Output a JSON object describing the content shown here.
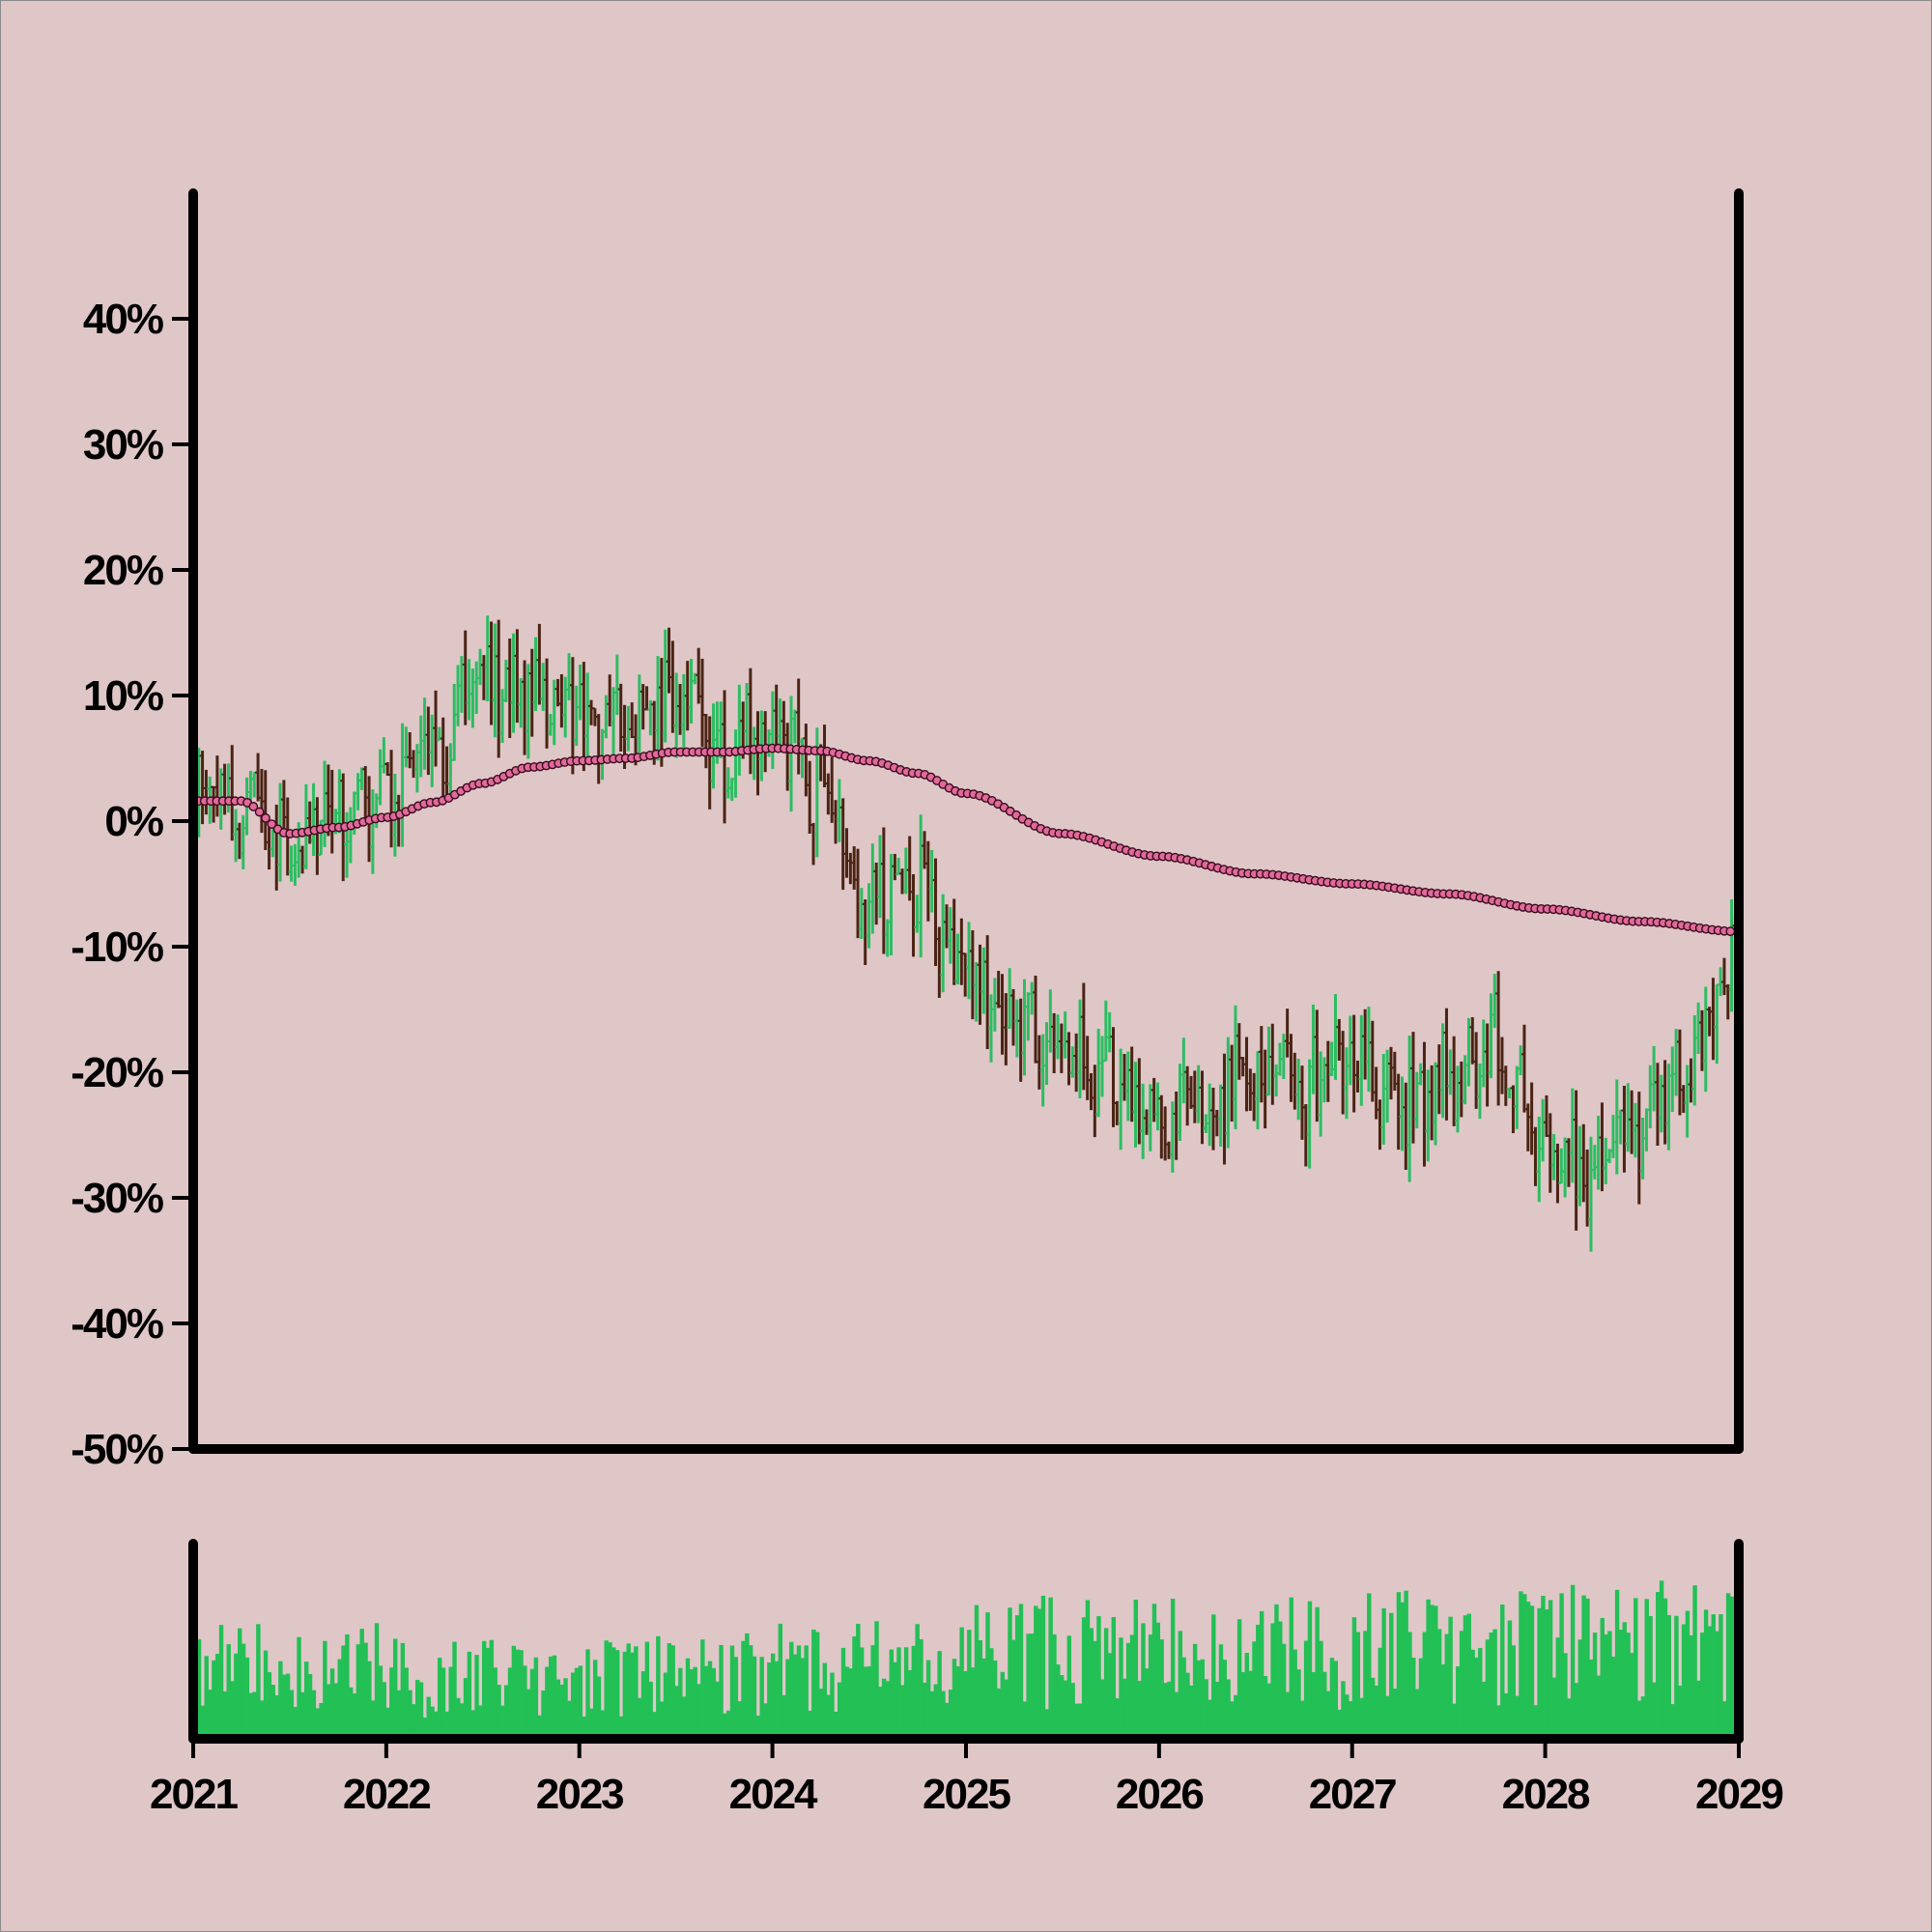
{
  "colors": {
    "background": "#dfc7c8",
    "up": "#2dbd62",
    "down": "#4b2414",
    "moving_average": "#e06a9a",
    "volume": "#22c055",
    "axis": "#000000"
  },
  "chart_data": {
    "type": "ohlc",
    "title": "",
    "xlabel": "",
    "ylabel": "",
    "y_unit": "%",
    "ylim": [
      -50,
      50
    ],
    "xlim": [
      "2021-01-01",
      "2029-01-01"
    ],
    "y_ticks": [
      {
        "value": 40,
        "label": "40%"
      },
      {
        "value": 30,
        "label": "30%"
      },
      {
        "value": 20,
        "label": "20%"
      },
      {
        "value": 10,
        "label": "10%"
      },
      {
        "value": 0,
        "label": "0%"
      },
      {
        "value": -10,
        "label": "-10%"
      },
      {
        "value": -20,
        "label": "-20%"
      },
      {
        "value": -30,
        "label": "-30%"
      },
      {
        "value": -40,
        "label": "-40%"
      },
      {
        "value": -50,
        "label": "-50%"
      }
    ],
    "x_ticks": [
      {
        "date": "2021-01-01",
        "label": "2021"
      },
      {
        "date": "2022-01-01",
        "label": "2022"
      },
      {
        "date": "2023-01-01",
        "label": "2023"
      },
      {
        "date": "2024-01-01",
        "label": "2024"
      },
      {
        "date": "2025-01-01",
        "label": "2025"
      },
      {
        "date": "2026-01-01",
        "label": "2026"
      },
      {
        "date": "2027-01-01",
        "label": "2027"
      },
      {
        "date": "2028-01-01",
        "label": "2028"
      },
      {
        "date": "2029-01-01",
        "label": "2029"
      }
    ],
    "price_anchors": {
      "dates": [
        "2021-01-01",
        "2021-04-01",
        "2021-07-01",
        "2021-10-01",
        "2022-01-01",
        "2022-04-01",
        "2022-07-01",
        "2022-10-01",
        "2023-01-01",
        "2023-04-01",
        "2023-07-01",
        "2023-10-01",
        "2024-01-01",
        "2024-04-01",
        "2024-07-01",
        "2024-10-01",
        "2025-01-01",
        "2025-04-01",
        "2025-07-01",
        "2025-10-01",
        "2026-01-01",
        "2026-04-01",
        "2026-07-01",
        "2026-10-01",
        "2027-01-01",
        "2027-04-01",
        "2027-07-01",
        "2027-10-01",
        "2028-01-01",
        "2028-04-01",
        "2028-07-01",
        "2028-10-01",
        "2029-01-01"
      ],
      "values": [
        2,
        1,
        -3,
        1,
        2,
        6,
        12,
        10,
        9,
        7,
        10,
        5,
        7,
        2,
        -6,
        -5,
        -12,
        -16,
        -19,
        -21,
        -24,
        -22,
        -20,
        -22,
        -19,
        -22,
        -21,
        -18,
        -27,
        -28,
        -24,
        -20,
        -11
      ]
    },
    "ohlc_settings": {
      "interval_days": 7,
      "typical_range_pct": 6
    },
    "moving_average": {
      "dates": [
        "2021-01-01",
        "2021-04-01",
        "2021-07-01",
        "2021-10-01",
        "2022-01-01",
        "2022-04-01",
        "2022-07-01",
        "2022-10-01",
        "2023-01-01",
        "2023-04-01",
        "2023-07-01",
        "2023-10-01",
        "2024-01-01",
        "2024-04-01",
        "2024-07-01",
        "2024-10-01",
        "2025-01-01",
        "2025-07-01",
        "2026-01-01",
        "2026-07-01",
        "2027-01-01",
        "2027-07-01",
        "2028-01-01",
        "2028-07-01",
        "2029-01-01"
      ],
      "values": [
        1.6,
        1.6,
        -1.0,
        -0.5,
        0.3,
        1.5,
        3.0,
        4.3,
        4.8,
        5.0,
        5.5,
        5.5,
        5.8,
        5.6,
        4.8,
        3.8,
        2.2,
        -1.0,
        -2.8,
        -4.2,
        -5.0,
        -5.8,
        -7.0,
        -8.0,
        -8.8
      ]
    },
    "volume": {
      "description_free": true,
      "relative_level_by_year": [
        {
          "year": 2021,
          "level": 0.45
        },
        {
          "year": 2022,
          "level": 0.4
        },
        {
          "year": 2023,
          "level": 0.4
        },
        {
          "year": 2024,
          "level": 0.45
        },
        {
          "year": 2025,
          "level": 0.55
        },
        {
          "year": 2026,
          "level": 0.55
        },
        {
          "year": 2027,
          "level": 0.6
        },
        {
          "year": 2028,
          "level": 0.6
        }
      ]
    }
  }
}
